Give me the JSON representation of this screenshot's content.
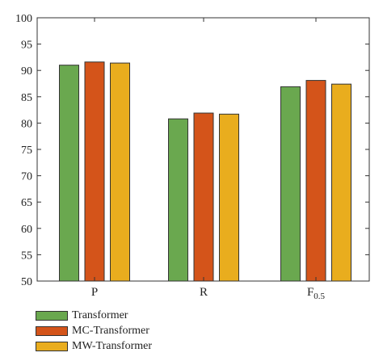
{
  "chart_data": {
    "type": "bar",
    "categories": [
      "P",
      "R",
      "F"
    ],
    "category_subscripts": [
      "",
      "",
      "0.5"
    ],
    "series": [
      {
        "name": "Transformer",
        "values": [
          91.0,
          80.8,
          86.9
        ],
        "color": "#6aa84f"
      },
      {
        "name": "MC-Transformer",
        "values": [
          91.6,
          81.9,
          88.1
        ],
        "color": "#d4541a"
      },
      {
        "name": "MW-Transformer",
        "values": [
          91.4,
          81.7,
          87.4
        ],
        "color": "#e9ad1e"
      }
    ],
    "yticks": [
      "50",
      "55",
      "60",
      "65",
      "70",
      "75",
      "80",
      "85",
      "90",
      "95",
      "100"
    ],
    "ylim": [
      50,
      100
    ],
    "grid": false,
    "legend_position": "bottom-left"
  }
}
